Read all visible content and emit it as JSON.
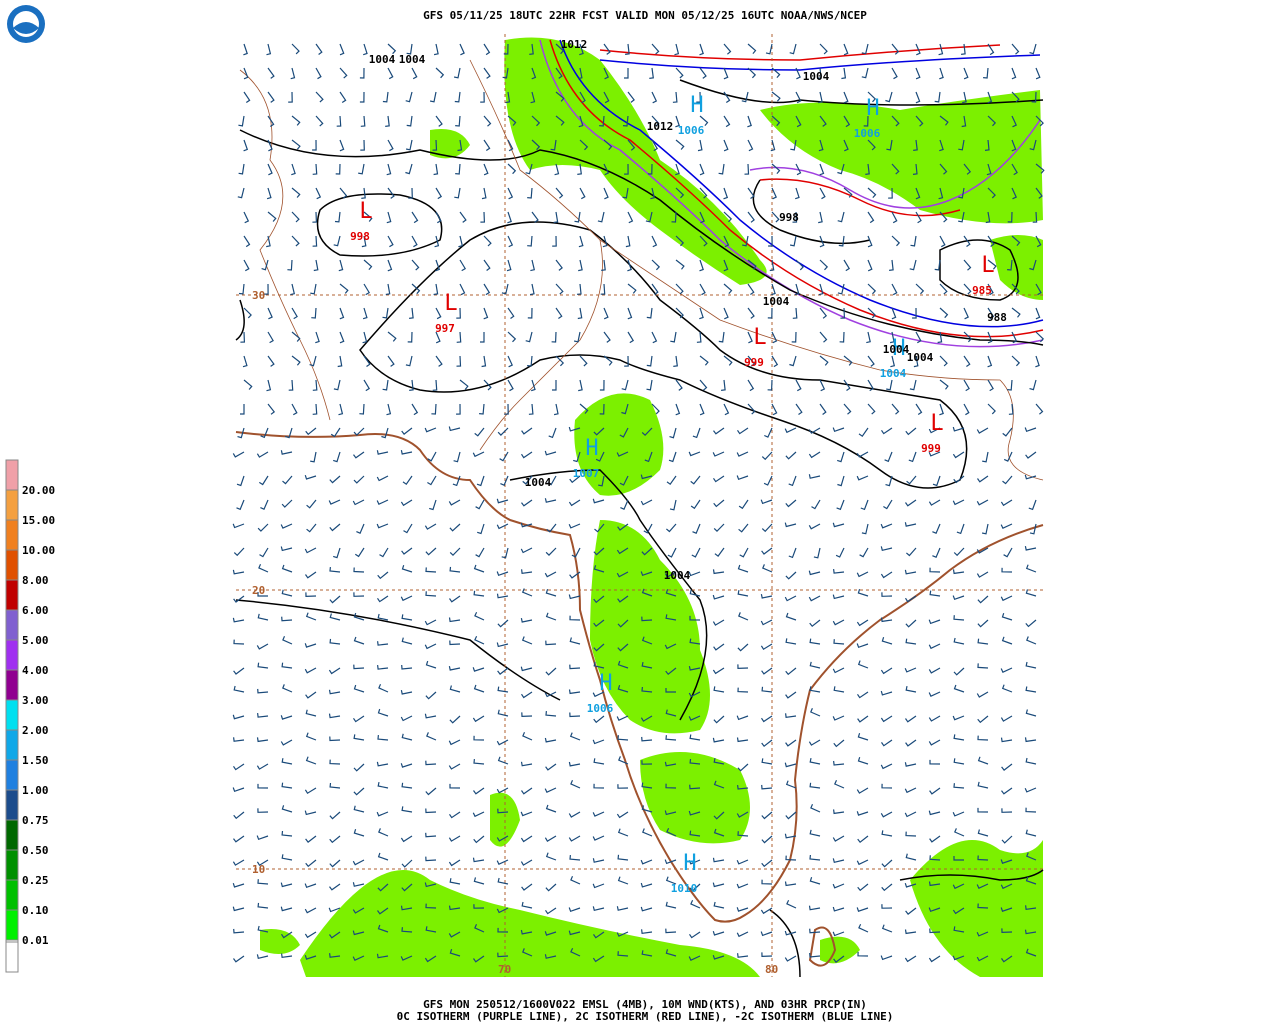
{
  "header": {
    "title": "GFS 05/11/25 18UTC 22HR FCST VALID MON 05/12/25 16UTC NOAA/NWS/NCEP"
  },
  "legend": {
    "items": [
      {
        "label": "20.00",
        "color": "#f0a0a8"
      },
      {
        "label": "15.00",
        "color": "#f4a040"
      },
      {
        "label": "10.00",
        "color": "#f08020"
      },
      {
        "label": "8.00",
        "color": "#e05000"
      },
      {
        "label": "6.00",
        "color": "#c00000"
      },
      {
        "label": "5.00",
        "color": "#8060d0"
      },
      {
        "label": "4.00",
        "color": "#a030f0"
      },
      {
        "label": "3.00",
        "color": "#900090"
      },
      {
        "label": "2.00",
        "color": "#00e0f0"
      },
      {
        "label": "1.50",
        "color": "#10a8e8"
      },
      {
        "label": "1.00",
        "color": "#2080e0"
      },
      {
        "label": "0.75",
        "color": "#1c4c8c"
      },
      {
        "label": "0.50",
        "color": "#006800"
      },
      {
        "label": "0.25",
        "color": "#009000"
      },
      {
        "label": "0.10",
        "color": "#00c000"
      },
      {
        "label": "0.01",
        "color": "#00f000"
      }
    ]
  },
  "map": {
    "lat_labels": [
      "30",
      "20",
      "10"
    ],
    "lon_labels": [
      "70",
      "80"
    ],
    "pressure_centers": [
      {
        "symbol": "L",
        "value": "998"
      },
      {
        "symbol": "L",
        "value": "997"
      },
      {
        "symbol": "L",
        "value": "999"
      },
      {
        "symbol": "L",
        "value": "985"
      },
      {
        "symbol": "L",
        "value": "999"
      },
      {
        "symbol": "H",
        "value": "1006"
      },
      {
        "symbol": "H",
        "value": "1006"
      },
      {
        "symbol": "H",
        "value": "1007"
      },
      {
        "symbol": "H",
        "value": "1004"
      },
      {
        "symbol": "H",
        "value": "1006"
      },
      {
        "symbol": "H",
        "value": "1010"
      }
    ],
    "contour_labels": [
      "1004",
      "1004",
      "1012",
      "1012",
      "1004",
      "998",
      "1004",
      "988",
      "1004",
      "1004",
      "1004",
      "1004"
    ]
  },
  "footer": {
    "lines": [
      "GFS MON 250512/1600V022 EMSL (4MB), 10M WND(KTS), AND 03HR PRCP(IN)",
      "0C ISOTHERM (PURPLE LINE), 2C ISOTHERM (RED LINE), -2C ISOTHERM (BLUE LINE)"
    ]
  }
}
